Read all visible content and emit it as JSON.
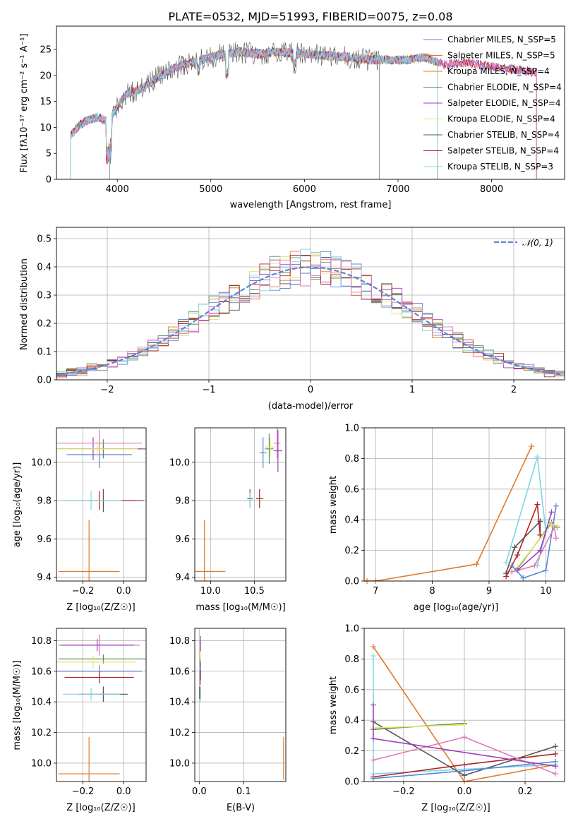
{
  "palette": [
    "#5b84d6",
    "#e07a2a",
    "#5c8f5a",
    "#9b3fbf",
    "#e2e66a",
    "#555555",
    "#b22222",
    "#7fd6e0",
    "#e07ab8"
  ],
  "chart_data": [
    {
      "id": "spectrum",
      "type": "line",
      "title": "PLATE=0532, MJD=51993, FIBERID=0075, z=0.08",
      "xlabel": "wavelength [Angstrom, rest frame]",
      "ylabel": "Flux [fλ10⁻¹⁷ erg cm⁻² s⁻¹ A⁻¹]",
      "xlim": [
        3350,
        8780
      ],
      "ylim": [
        0,
        29.5
      ],
      "xticks": [
        4000,
        5000,
        6000,
        7000,
        8000
      ],
      "yticks": [
        0,
        5,
        10,
        15,
        20,
        25
      ],
      "grid": false,
      "legend_position": "upper-right",
      "continuum": {
        "x": [
          3500,
          3600,
          3700,
          3800,
          3900,
          4000,
          4100,
          4200,
          4300,
          4500,
          4700,
          4900,
          5100,
          5300,
          5500,
          5700,
          5900,
          6100,
          6300,
          6500,
          6700,
          6900,
          7100,
          7300,
          7500,
          7700,
          7900,
          8100,
          8300,
          8500
        ],
        "y": [
          8.5,
          10.5,
          11.5,
          12.0,
          11.0,
          14.0,
          16.5,
          17.0,
          18.0,
          20.5,
          22.0,
          23.0,
          24.0,
          24.5,
          24.2,
          24.5,
          24.3,
          24.0,
          23.8,
          23.5,
          23.0,
          23.0,
          23.0,
          23.5,
          22.0,
          22.5,
          22.0,
          21.5,
          21.0,
          20.5
        ]
      },
      "series": [
        {
          "name": "Chabrier MILES, N_SSP=5"
        },
        {
          "name": "Salpeter MILES, N_SSP=5"
        },
        {
          "name": "Kroupa MILES, N_SSP=4"
        },
        {
          "name": "Chabrier ELODIE, N_SSP=4"
        },
        {
          "name": "Salpeter ELODIE, N_SSP=4"
        },
        {
          "name": "Kroupa ELODIE, N_SSP=4"
        },
        {
          "name": "Chabrier STELIB, N_SSP=4"
        },
        {
          "name": "Salpeter STELIB, N_SSP=4"
        },
        {
          "name": "Kroupa STELIB, N_SSP=3"
        }
      ]
    },
    {
      "id": "residuals",
      "type": "step",
      "xlabel": "(data-model)/error",
      "ylabel": "Normed distribution",
      "xlim": [
        -2.5,
        2.5
      ],
      "ylim": [
        0,
        0.54
      ],
      "xticks": [
        -2,
        -1,
        0,
        1,
        2
      ],
      "xtick_labels": [
        "−2",
        "−1",
        "0",
        "1",
        "2"
      ],
      "yticks": [
        0.0,
        0.1,
        0.2,
        0.3,
        0.4,
        0.5
      ],
      "ytick_labels": [
        "0.0",
        "0.1",
        "0.2",
        "0.3",
        "0.4",
        "0.5"
      ],
      "grid": true,
      "legend": "𝒩(0, 1)",
      "legend_position": "upper-right",
      "bin_width": 0.1
    },
    {
      "id": "age-vs-z",
      "type": "errorbar",
      "xlabel": "Z [log₁₀(Z/Z☉)]",
      "ylabel": "age  [log₁₀(age/yr)]",
      "xlim": [
        -0.33,
        0.11
      ],
      "ylim": [
        9.38,
        10.18
      ],
      "xticks": [
        -0.2,
        0.0
      ],
      "xtick_labels": [
        "−0.2",
        "0.0"
      ],
      "yticks": [
        9.4,
        9.6,
        9.8,
        10.0
      ],
      "ytick_labels": [
        "9.4",
        "9.6",
        "9.8",
        "10.0"
      ],
      "grid": true,
      "points": [
        {
          "x": -0.12,
          "y": 10.04,
          "xerr": 0.16,
          "yerr": 0.07,
          "c": 0
        },
        {
          "x": -0.17,
          "y": 9.43,
          "xerr": 0.15,
          "yerr": 0.27,
          "c": 1
        },
        {
          "x": -0.1,
          "y": 10.07,
          "xerr": 0.22,
          "yerr": 0.05,
          "c": 2
        },
        {
          "x": -0.15,
          "y": 10.07,
          "xerr": 0.24,
          "yerr": 0.06,
          "c": 3
        },
        {
          "x": -0.12,
          "y": 10.1,
          "xerr": 0.21,
          "yerr": 0.07,
          "c": 8
        },
        {
          "x": -0.13,
          "y": 10.07,
          "xerr": 0.2,
          "yerr": 0.04,
          "c": 4
        },
        {
          "x": -0.1,
          "y": 9.8,
          "xerr": 0.2,
          "yerr": 0.06,
          "c": 5
        },
        {
          "x": -0.12,
          "y": 9.8,
          "xerr": 0.19,
          "yerr": 0.05,
          "c": 6
        },
        {
          "x": -0.16,
          "y": 9.8,
          "xerr": 0.15,
          "yerr": 0.05,
          "c": 7
        }
      ]
    },
    {
      "id": "age-vs-mass",
      "type": "errorbar",
      "xlabel": "mass [log₁₀(M/M☉)]",
      "ylabel": "",
      "xlim": [
        9.82,
        10.86
      ],
      "ylim": [
        9.38,
        10.18
      ],
      "xticks": [
        10.0,
        10.5
      ],
      "xtick_labels": [
        "10.0",
        "10.5"
      ],
      "yticks": [
        9.4,
        9.6,
        9.8,
        10.0
      ],
      "ytick_labels": [
        "9.4",
        "9.6",
        "9.8",
        "10.0"
      ],
      "grid": true,
      "points": [
        {
          "x": 10.6,
          "y": 10.05,
          "xerr": 0.04,
          "yerr": 0.08,
          "c": 0
        },
        {
          "x": 9.93,
          "y": 9.43,
          "xerr": 0.24,
          "yerr": 0.27,
          "c": 1
        },
        {
          "x": 10.67,
          "y": 10.07,
          "xerr": 0.05,
          "yerr": 0.08,
          "c": 2
        },
        {
          "x": 10.68,
          "y": 10.08,
          "xerr": 0.06,
          "yerr": 0.05,
          "c": 4
        },
        {
          "x": 10.76,
          "y": 10.1,
          "xerr": 0.04,
          "yerr": 0.08,
          "c": 8
        },
        {
          "x": 10.77,
          "y": 10.06,
          "xerr": 0.05,
          "yerr": 0.11,
          "c": 3
        },
        {
          "x": 10.56,
          "y": 9.81,
          "xerr": 0.04,
          "yerr": 0.05,
          "c": 6
        },
        {
          "x": 10.45,
          "y": 9.81,
          "xerr": 0.03,
          "yerr": 0.05,
          "c": 5
        },
        {
          "x": 10.45,
          "y": 9.8,
          "xerr": 0.04,
          "yerr": 0.04,
          "c": 7
        }
      ]
    },
    {
      "id": "weight-vs-age",
      "type": "line",
      "xlabel": "age  [log₁₀(age/yr)]",
      "ylabel": "mass weight",
      "xlim": [
        6.8,
        10.33
      ],
      "ylim": [
        0,
        1.0
      ],
      "xticks": [
        7,
        8,
        9,
        10
      ],
      "xtick_labels": [
        "7",
        "8",
        "9",
        "10"
      ],
      "yticks": [
        0.0,
        0.2,
        0.4,
        0.6,
        0.8,
        1.0
      ],
      "ytick_labels": [
        "0.0",
        "0.2",
        "0.4",
        "0.6",
        "0.8",
        "1.0"
      ],
      "grid": true,
      "series": [
        {
          "c": 1,
          "x": [
            6.85,
            7.0,
            8.78,
            9.75
          ],
          "y": [
            0.0,
            0.0,
            0.11,
            0.88
          ]
        },
        {
          "c": 7,
          "x": [
            9.3,
            9.85,
            10.0,
            9.85
          ],
          "y": [
            0.12,
            0.81,
            0.32,
            0.1
          ]
        },
        {
          "c": 5,
          "x": [
            9.3,
            9.45,
            9.9,
            9.9
          ],
          "y": [
            0.05,
            0.22,
            0.39,
            0.3
          ]
        },
        {
          "c": 6,
          "x": [
            9.3,
            9.5,
            9.85,
            9.9
          ],
          "y": [
            0.03,
            0.17,
            0.5,
            0.3
          ]
        },
        {
          "c": 0,
          "x": [
            9.4,
            9.6,
            10.0,
            10.18
          ],
          "y": [
            0.1,
            0.02,
            0.07,
            0.49
          ]
        },
        {
          "c": 2,
          "x": [
            9.5,
            10.1,
            10.2
          ],
          "y": [
            0.08,
            0.38,
            0.35
          ]
        },
        {
          "c": 4,
          "x": [
            9.5,
            10.1,
            10.2
          ],
          "y": [
            0.09,
            0.37,
            0.36
          ]
        },
        {
          "c": 8,
          "x": [
            9.4,
            9.8,
            10.15,
            10.18
          ],
          "y": [
            0.06,
            0.1,
            0.35,
            0.28
          ]
        },
        {
          "c": 3,
          "x": [
            9.5,
            9.9,
            10.1
          ],
          "y": [
            0.07,
            0.2,
            0.45
          ]
        }
      ]
    },
    {
      "id": "mass-vs-z",
      "type": "errorbar",
      "xlabel": "Z [log₁₀(Z/Z☉)]",
      "ylabel": "mass [log₁₀(M/M☉)]",
      "xlim": [
        -0.33,
        0.11
      ],
      "ylim": [
        9.88,
        10.88
      ],
      "xticks": [
        -0.2,
        0.0
      ],
      "xtick_labels": [
        "−0.2",
        "0.0"
      ],
      "yticks": [
        10.0,
        10.2,
        10.4,
        10.6,
        10.8
      ],
      "ytick_labels": [
        "10.0",
        "10.2",
        "10.4",
        "10.6",
        "10.8"
      ],
      "grid": true,
      "points": [
        {
          "x": -0.12,
          "y": 10.6,
          "xerr": 0.21,
          "yerr": 0.04,
          "c": 0
        },
        {
          "x": -0.17,
          "y": 9.93,
          "xerr": 0.15,
          "yerr": 0.24,
          "c": 1
        },
        {
          "x": -0.1,
          "y": 10.68,
          "xerr": 0.22,
          "yerr": 0.03,
          "c": 2
        },
        {
          "x": -0.15,
          "y": 10.66,
          "xerr": 0.21,
          "yerr": 0.04,
          "c": 4
        },
        {
          "x": -0.12,
          "y": 10.77,
          "xerr": 0.2,
          "yerr": 0.07,
          "c": 8
        },
        {
          "x": -0.13,
          "y": 10.77,
          "xerr": 0.18,
          "yerr": 0.04,
          "c": 3
        },
        {
          "x": -0.12,
          "y": 10.56,
          "xerr": 0.17,
          "yerr": 0.04,
          "c": 6
        },
        {
          "x": -0.1,
          "y": 10.45,
          "xerr": 0.12,
          "yerr": 0.05,
          "c": 5
        },
        {
          "x": -0.16,
          "y": 10.45,
          "xerr": 0.14,
          "yerr": 0.04,
          "c": 7
        }
      ]
    },
    {
      "id": "mass-vs-ebv",
      "type": "errorbar",
      "xlabel": "E(B-V)",
      "ylabel": "",
      "xlim": [
        -0.01,
        0.195
      ],
      "ylim": [
        9.88,
        10.88
      ],
      "xticks": [
        0.0,
        0.1
      ],
      "xtick_labels": [
        "0.0",
        "0.1"
      ],
      "yticks": [
        10.0,
        10.2,
        10.4,
        10.6,
        10.8
      ],
      "ytick_labels": [
        "10.0",
        "10.2",
        "10.4",
        "10.6",
        "10.8"
      ],
      "grid": true,
      "points": [
        {
          "x": 0.003,
          "y": 10.6,
          "xerr": 0,
          "yerr": 0.06,
          "c": 0
        },
        {
          "x": 0.19,
          "y": 10.03,
          "xerr": 0,
          "yerr": 0.14,
          "c": 1
        },
        {
          "x": 0.002,
          "y": 10.68,
          "xerr": 0,
          "yerr": 0.06,
          "c": 2
        },
        {
          "x": 0.002,
          "y": 10.74,
          "xerr": 0,
          "yerr": 0.06,
          "c": 4
        },
        {
          "x": 0.003,
          "y": 10.78,
          "xerr": 0,
          "yerr": 0.05,
          "c": 3
        },
        {
          "x": 0.002,
          "y": 10.56,
          "xerr": 0,
          "yerr": 0.05,
          "c": 6
        },
        {
          "x": 0.003,
          "y": 10.45,
          "xerr": 0,
          "yerr": 0.05,
          "c": 7
        },
        {
          "x": 0.001,
          "y": 10.46,
          "xerr": 0,
          "yerr": 0.04,
          "c": 5
        }
      ]
    },
    {
      "id": "weight-vs-z",
      "type": "line",
      "xlabel": "Z [log₁₀(Z/Z☉)]",
      "ylabel": "mass weight",
      "xlim": [
        -0.33,
        0.33
      ],
      "ylim": [
        0,
        1.0
      ],
      "xticks": [
        -0.2,
        0.0,
        0.2
      ],
      "xtick_labels": [
        "−0.2",
        "0.0",
        "0.2"
      ],
      "yticks": [
        0.0,
        0.2,
        0.4,
        0.6,
        0.8,
        1.0
      ],
      "ytick_labels": [
        "0.0",
        "0.2",
        "0.4",
        "0.6",
        "0.8",
        "1.0"
      ],
      "grid": true,
      "series": [
        {
          "c": 1,
          "x": [
            -0.3,
            0.0,
            0.3
          ],
          "y": [
            0.88,
            0.0,
            0.11
          ]
        },
        {
          "c": 7,
          "x": [
            -0.3,
            -0.3,
            0.3
          ],
          "y": [
            0.82,
            0.05,
            0.11
          ]
        },
        {
          "c": 5,
          "x": [
            -0.3,
            0.0,
            0.3
          ],
          "y": [
            0.39,
            0.04,
            0.23
          ]
        },
        {
          "c": 6,
          "x": [
            -0.3,
            0.0,
            0.3
          ],
          "y": [
            0.03,
            0.11,
            0.18
          ]
        },
        {
          "c": 0,
          "x": [
            -0.3,
            0.0,
            0.3
          ],
          "y": [
            0.02,
            0.07,
            0.13
          ]
        },
        {
          "c": 2,
          "x": [
            -0.3,
            0.0
          ],
          "y": [
            0.34,
            0.38
          ]
        },
        {
          "c": 4,
          "x": [
            -0.3,
            0.0
          ],
          "y": [
            0.35,
            0.37
          ]
        },
        {
          "c": 8,
          "x": [
            -0.3,
            0.0,
            0.3
          ],
          "y": [
            0.14,
            0.29,
            0.05
          ]
        },
        {
          "c": 3,
          "x": [
            -0.3,
            -0.3,
            0.3
          ],
          "y": [
            0.5,
            0.28,
            0.1
          ]
        }
      ]
    }
  ]
}
